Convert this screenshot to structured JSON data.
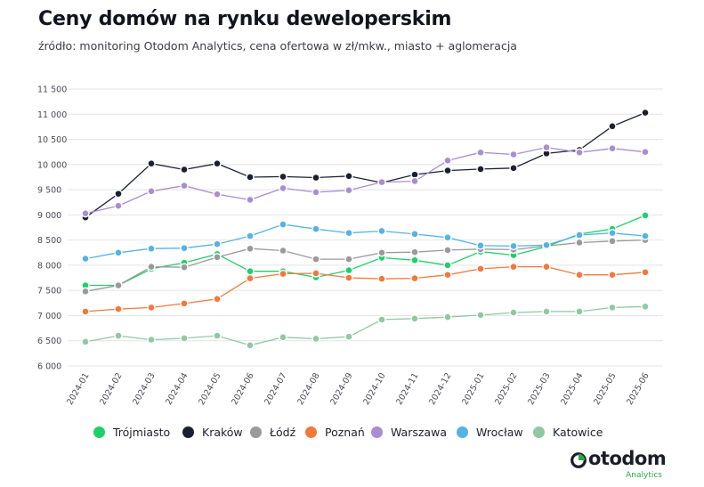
{
  "header": {
    "title": "Ceny domów na rynku deweloperskim",
    "subtitle": "źródło: monitoring Otodom Analytics, cena ofertowa w zł/mkw., miasto + aglomeracja"
  },
  "brand": {
    "name": "otodom",
    "sub": "Analytics",
    "icon": "otodom-logo-icon",
    "accent": "#2aa84a"
  },
  "chart_data": {
    "type": "line",
    "title": "Ceny domów na rynku deweloperskim",
    "subtitle": "źródło: monitoring Otodom Analytics, cena ofertowa w zł/mkw., miasto + aglomeracja",
    "xlabel": "",
    "ylabel": "",
    "ylim": [
      6000,
      11500
    ],
    "yticks": [
      6000,
      6500,
      7000,
      7500,
      8000,
      8500,
      9000,
      9500,
      10000,
      10500,
      11000,
      11500
    ],
    "ytick_labels": [
      "6 000",
      "6 500",
      "7 000",
      "7 500",
      "8 000",
      "8 500",
      "9 000",
      "9 500",
      "10 000",
      "10 500",
      "11 000",
      "11 500"
    ],
    "grid": true,
    "legend_position": "bottom",
    "x": [
      "2024-01",
      "2024-02",
      "2024-03",
      "2024-04",
      "2024-05",
      "2024-06",
      "2024-07",
      "2024-08",
      "2024-09",
      "2024-10",
      "2024-11",
      "2024-12",
      "2025-01",
      "2025-02",
      "2025-03",
      "2025-04",
      "2025-05",
      "2025-06"
    ],
    "series": [
      {
        "name": "Trójmiasto",
        "color": "#1fd06a",
        "values": [
          7600,
          7600,
          7930,
          8050,
          8220,
          7880,
          7880,
          7760,
          7900,
          8150,
          8100,
          8000,
          8270,
          8200,
          8370,
          8620,
          8720,
          8990
        ]
      },
      {
        "name": "Kraków",
        "color": "#1b1f33",
        "values": [
          8950,
          9420,
          10020,
          9900,
          10020,
          9750,
          9760,
          9740,
          9770,
          9640,
          9800,
          9880,
          9910,
          9930,
          10220,
          10290,
          10760,
          11030
        ]
      },
      {
        "name": "Łódź",
        "color": "#9a9a9a",
        "values": [
          7480,
          7600,
          7970,
          7960,
          8160,
          8330,
          8290,
          8120,
          8120,
          8250,
          8260,
          8300,
          8320,
          8310,
          8380,
          8450,
          8480,
          8500
        ]
      },
      {
        "name": "Poznań",
        "color": "#f2793a",
        "values": [
          7080,
          7130,
          7160,
          7240,
          7330,
          7740,
          7830,
          7840,
          7750,
          7730,
          7740,
          7810,
          7930,
          7970,
          7970,
          7810,
          7810,
          7860
        ]
      },
      {
        "name": "Warszawa",
        "color": "#a88ed0",
        "values": [
          9030,
          9180,
          9470,
          9580,
          9410,
          9300,
          9530,
          9450,
          9490,
          9650,
          9670,
          10080,
          10240,
          10200,
          10340,
          10240,
          10320,
          10250
        ]
      },
      {
        "name": "Wrocław",
        "color": "#55b2e6",
        "values": [
          8130,
          8250,
          8330,
          8340,
          8420,
          8580,
          8810,
          8720,
          8640,
          8680,
          8620,
          8550,
          8390,
          8380,
          8400,
          8600,
          8640,
          8580
        ]
      },
      {
        "name": "Katowice",
        "color": "#8fc9a2",
        "values": [
          6480,
          6600,
          6520,
          6550,
          6600,
          6410,
          6570,
          6540,
          6580,
          6920,
          6940,
          6970,
          7010,
          7060,
          7080,
          7080,
          7160,
          7180
        ]
      }
    ]
  }
}
